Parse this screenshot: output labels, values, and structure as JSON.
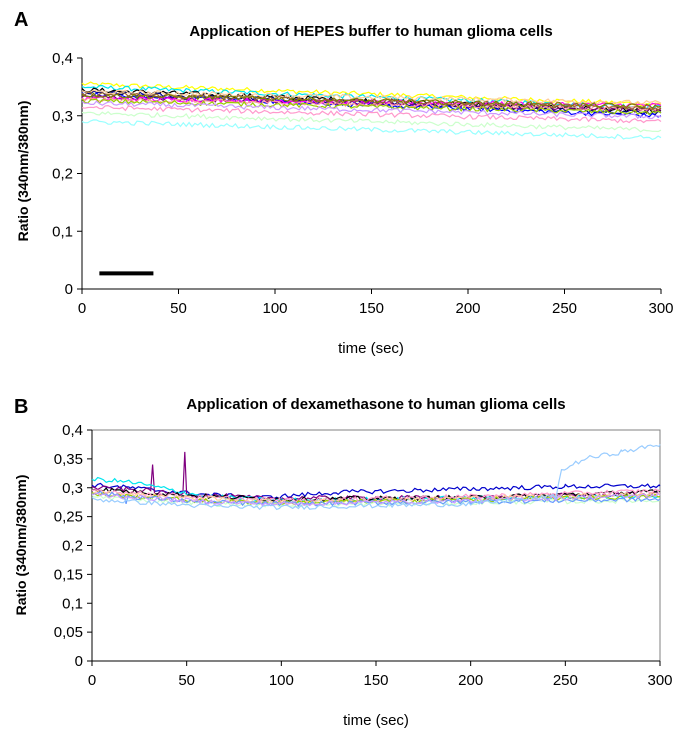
{
  "chart_data": [
    {
      "panel": "A",
      "type": "line",
      "title": "Application of HEPES buffer to human glioma cells",
      "xlabel": "time (sec)",
      "ylabel": "Ratio (340nm/380nm)",
      "xlim": [
        0,
        300
      ],
      "ylim": [
        0,
        0.4
      ],
      "x_ticks": [
        "0",
        "50",
        "100",
        "150",
        "200",
        "250",
        "300"
      ],
      "x_tick_values": [
        0,
        50,
        100,
        150,
        200,
        250,
        300
      ],
      "y_ticks": [
        "0",
        "0,1",
        "0,2",
        "0,3",
        "0,4"
      ],
      "y_tick_values": [
        0,
        0.1,
        0.2,
        0.3,
        0.4
      ],
      "frame": "open",
      "grid": false,
      "legend": "none",
      "annotation_bar": {
        "x": [
          9,
          37
        ],
        "y": 0.027,
        "color": "#000000"
      },
      "series": [
        {
          "color": "#ffff00",
          "x": [
            0,
            300
          ],
          "y": [
            0.355,
            0.32
          ]
        },
        {
          "color": "#00e5ee",
          "x": [
            0,
            300
          ],
          "y": [
            0.35,
            0.315
          ]
        },
        {
          "color": "#000000",
          "x": [
            0,
            300
          ],
          "y": [
            0.345,
            0.308
          ]
        },
        {
          "color": "#000080",
          "x": [
            0,
            300
          ],
          "y": [
            0.34,
            0.305
          ]
        },
        {
          "color": "#0000ff",
          "x": [
            0,
            300
          ],
          "y": [
            0.337,
            0.3
          ]
        },
        {
          "color": "#800080",
          "x": [
            0,
            300
          ],
          "y": [
            0.333,
            0.31
          ]
        },
        {
          "color": "#ff00ff",
          "x": [
            0,
            300
          ],
          "y": [
            0.33,
            0.318
          ]
        },
        {
          "color": "#ff9999",
          "x": [
            0,
            300
          ],
          "y": [
            0.328,
            0.312
          ]
        },
        {
          "color": "#ffcc99",
          "x": [
            0,
            300
          ],
          "y": [
            0.342,
            0.322
          ]
        },
        {
          "color": "#996633",
          "x": [
            0,
            300
          ],
          "y": [
            0.338,
            0.313
          ]
        },
        {
          "color": "#808000",
          "x": [
            0,
            300
          ],
          "y": [
            0.336,
            0.316
          ]
        },
        {
          "color": "#99cc00",
          "x": [
            0,
            300
          ],
          "y": [
            0.326,
            0.305
          ]
        },
        {
          "color": "#cc99ff",
          "x": [
            0,
            300
          ],
          "y": [
            0.322,
            0.298
          ]
        },
        {
          "color": "#ff99cc",
          "x": [
            0,
            300
          ],
          "y": [
            0.315,
            0.29
          ]
        },
        {
          "color": "#ccffcc",
          "x": [
            0,
            300
          ],
          "y": [
            0.305,
            0.275
          ]
        },
        {
          "color": "#99ffff",
          "x": [
            0,
            300
          ],
          "y": [
            0.29,
            0.262
          ]
        }
      ]
    },
    {
      "panel": "B",
      "type": "line",
      "title": "Application of dexamethasone to human glioma cells",
      "xlabel": "time (sec)",
      "ylabel": "Ratio (340nm/380nm)",
      "xlim": [
        0,
        300
      ],
      "ylim": [
        0,
        0.4
      ],
      "x_ticks": [
        "0",
        "50",
        "100",
        "150",
        "200",
        "250",
        "300"
      ],
      "x_tick_values": [
        0,
        50,
        100,
        150,
        200,
        250,
        300
      ],
      "y_ticks": [
        "0",
        "0,05",
        "0,1",
        "0,15",
        "0,2",
        "0,25",
        "0,3",
        "0,35",
        "0,4"
      ],
      "y_tick_values": [
        0,
        0.05,
        0.1,
        0.15,
        0.2,
        0.25,
        0.3,
        0.35,
        0.4
      ],
      "frame": "box",
      "grid": false,
      "legend": "none",
      "series": [
        {
          "color": "#0000cc",
          "x": [
            0,
            20,
            60,
            90,
            130,
            200,
            250,
            300
          ],
          "y": [
            0.305,
            0.3,
            0.288,
            0.283,
            0.292,
            0.298,
            0.302,
            0.303
          ]
        },
        {
          "color": "#800080",
          "x": [
            0,
            31,
            32,
            33,
            48,
            49,
            50,
            90,
            200,
            300
          ],
          "y": [
            0.3,
            0.295,
            0.34,
            0.292,
            0.29,
            0.362,
            0.289,
            0.282,
            0.283,
            0.29
          ]
        },
        {
          "color": "#00e5ee",
          "x": [
            0,
            20,
            60,
            100,
            200,
            300
          ],
          "y": [
            0.315,
            0.31,
            0.285,
            0.278,
            0.282,
            0.285
          ]
        },
        {
          "color": "#000000",
          "x": [
            0,
            60,
            100,
            200,
            300
          ],
          "y": [
            0.298,
            0.285,
            0.28,
            0.283,
            0.293
          ]
        },
        {
          "color": "#ff99cc",
          "x": [
            0,
            60,
            100,
            200,
            300
          ],
          "y": [
            0.296,
            0.283,
            0.278,
            0.285,
            0.295
          ]
        },
        {
          "color": "#ffcc99",
          "x": [
            0,
            60,
            100,
            200,
            300
          ],
          "y": [
            0.292,
            0.281,
            0.276,
            0.282,
            0.29
          ]
        },
        {
          "color": "#99cc00",
          "x": [
            0,
            60,
            100,
            200,
            300
          ],
          "y": [
            0.289,
            0.277,
            0.274,
            0.279,
            0.285
          ]
        },
        {
          "color": "#ccffcc",
          "x": [
            0,
            60,
            100,
            200,
            300
          ],
          "y": [
            0.285,
            0.272,
            0.27,
            0.274,
            0.278
          ]
        },
        {
          "color": "#6699ff",
          "x": [
            0,
            17,
            18,
            19,
            60,
            100,
            200,
            300
          ],
          "y": [
            0.292,
            0.286,
            0.272,
            0.285,
            0.275,
            0.272,
            0.276,
            0.28
          ]
        },
        {
          "color": "#cc99ff",
          "x": [
            0,
            60,
            100,
            200,
            300
          ],
          "y": [
            0.288,
            0.276,
            0.272,
            0.278,
            0.287
          ]
        },
        {
          "color": "#99ccff",
          "x": [
            0,
            60,
            100,
            200,
            245,
            248,
            260,
            280,
            300
          ],
          "y": [
            0.28,
            0.268,
            0.266,
            0.272,
            0.285,
            0.33,
            0.35,
            0.362,
            0.375
          ]
        }
      ]
    }
  ]
}
